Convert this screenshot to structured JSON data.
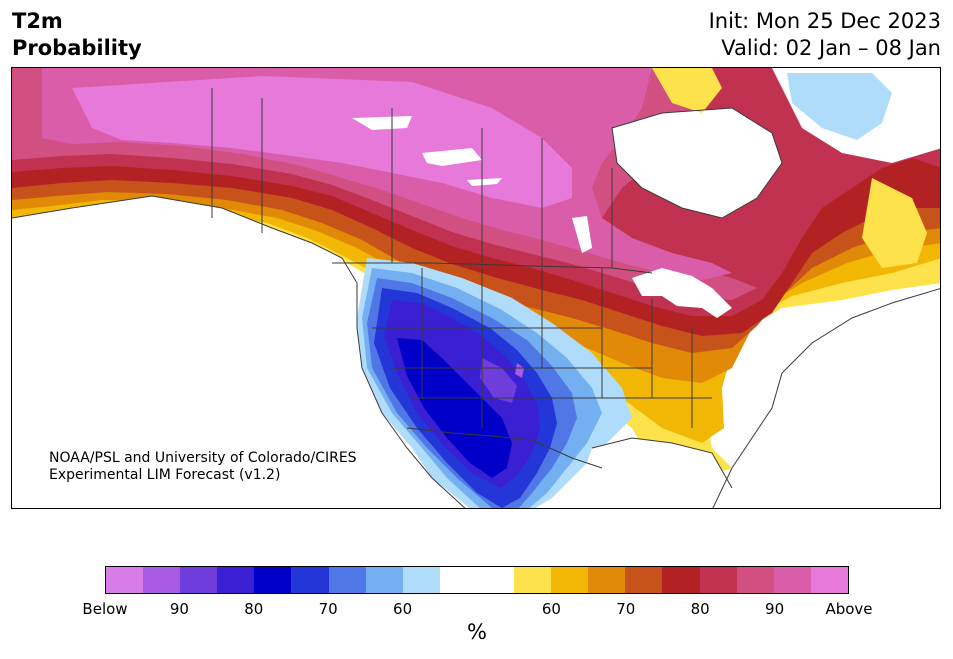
{
  "header": {
    "left_line1": "T2m",
    "left_line2": "Probability",
    "right_line1": "Init: Mon 25 Dec 2023",
    "right_line2": "Valid: 02 Jan – 08 Jan"
  },
  "credit": {
    "line1": "NOAA/PSL and University of Colorado/CIRES",
    "line2": "Experimental LIM Forecast (v1.2)"
  },
  "colorbar": {
    "unit": "%",
    "segments": [
      "#d87ce8",
      "#a75ae3",
      "#6f3ddb",
      "#3a1fd3",
      "#0000c8",
      "#2336d8",
      "#5077e6",
      "#74b0f1",
      "#afdcfa",
      "#ffffff",
      "#ffffff",
      "#fde24b",
      "#f2b705",
      "#e08a08",
      "#c8531a",
      "#b22222",
      "#c13250",
      "#d24f82",
      "#d95da9",
      "#e679da"
    ],
    "labels": [
      "Below",
      "90",
      "80",
      "70",
      "60",
      "60",
      "70",
      "80",
      "90",
      "Above"
    ]
  },
  "colors": {
    "below_extreme": "#d87ce8",
    "below_strong": "#0000c8",
    "below_mid": "#5077e6",
    "below_weak": "#afdcfa",
    "above_weak": "#fde24b",
    "above_mid": "#e08a08",
    "above_strong": "#b22222",
    "above_high": "#d24f82",
    "above_extreme": "#e679da",
    "neutral": "#ffffff",
    "borders": "#3a3a3a"
  }
}
